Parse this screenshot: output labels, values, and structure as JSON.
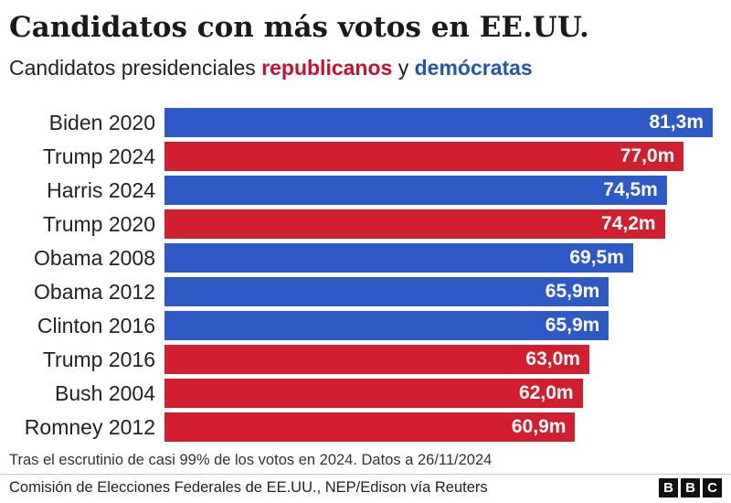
{
  "header": {
    "title": "Candidatos con más votos en EE.UU.",
    "subtitle_prefix": "Candidatos presidenciales ",
    "subtitle_rep": "republicanos",
    "subtitle_mid": " y ",
    "subtitle_dem": "demócratas"
  },
  "colors": {
    "republican": "#d21f2f",
    "democrat": "#2e5ac6"
  },
  "chart_data": {
    "type": "bar",
    "orientation": "horizontal",
    "categories": [
      "Biden 2020",
      "Trump 2024",
      "Harris 2024",
      "Trump 2020",
      "Obama 2008",
      "Obama 2012",
      "Clinton 2016",
      "Trump 2016",
      "Bush 2004",
      "Romney 2012"
    ],
    "values": [
      81.3,
      77.0,
      74.5,
      74.2,
      69.5,
      65.9,
      65.9,
      63.0,
      62.0,
      60.9
    ],
    "value_labels": [
      "81,3m",
      "77,0m",
      "74,5m",
      "74,2m",
      "69,5m",
      "65,9m",
      "65,9m",
      "63,0m",
      "62,0m",
      "60,9m"
    ],
    "party": [
      "democrat",
      "republican",
      "democrat",
      "republican",
      "democrat",
      "democrat",
      "democrat",
      "republican",
      "republican",
      "republican"
    ],
    "xlim": [
      0,
      81.3
    ],
    "grid": false,
    "legend": "subtitle"
  },
  "footer": {
    "note": "Tras el escrutinio de casi 99% de los votos en 2024. Datos a 26/11/2024",
    "source": "Comisión de Elecciones Federales de EE.UU., NEP/Edison vía Reuters",
    "logo_letters": [
      "B",
      "B",
      "C"
    ]
  }
}
